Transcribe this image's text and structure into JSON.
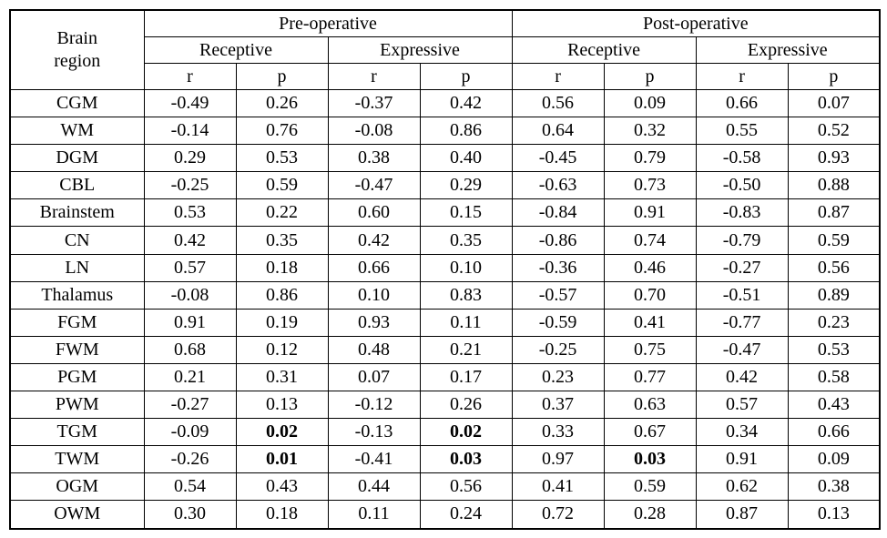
{
  "table": {
    "corner_header": "Brain region",
    "groups": [
      {
        "label": "Pre-operative",
        "subgroups": [
          {
            "label": "Receptive"
          },
          {
            "label": "Expressive"
          }
        ]
      },
      {
        "label": "Post-operative",
        "subgroups": [
          {
            "label": "Receptive"
          },
          {
            "label": "Expressive"
          }
        ]
      }
    ],
    "stat_headers": [
      "r",
      "p"
    ],
    "rows": [
      {
        "region": "CGM",
        "values": [
          "-0.49",
          "0.26",
          "-0.37",
          "0.42",
          "0.56",
          "0.09",
          "0.66",
          "0.07"
        ],
        "bold": []
      },
      {
        "region": "WM",
        "values": [
          "-0.14",
          "0.76",
          "-0.08",
          "0.86",
          "0.64",
          "0.32",
          "0.55",
          "0.52"
        ],
        "bold": []
      },
      {
        "region": "DGM",
        "values": [
          "0.29",
          "0.53",
          "0.38",
          "0.40",
          "-0.45",
          "0.79",
          "-0.58",
          "0.93"
        ],
        "bold": []
      },
      {
        "region": "CBL",
        "values": [
          "-0.25",
          "0.59",
          "-0.47",
          "0.29",
          "-0.63",
          "0.73",
          "-0.50",
          "0.88"
        ],
        "bold": []
      },
      {
        "region": "Brainstem",
        "values": [
          "0.53",
          "0.22",
          "0.60",
          "0.15",
          "-0.84",
          "0.91",
          "-0.83",
          "0.87"
        ],
        "bold": []
      },
      {
        "region": "CN",
        "values": [
          "0.42",
          "0.35",
          "0.42",
          "0.35",
          "-0.86",
          "0.74",
          "-0.79",
          "0.59"
        ],
        "bold": []
      },
      {
        "region": "LN",
        "values": [
          "0.57",
          "0.18",
          "0.66",
          "0.10",
          "-0.36",
          "0.46",
          "-0.27",
          "0.56"
        ],
        "bold": []
      },
      {
        "region": "Thalamus",
        "values": [
          "-0.08",
          "0.86",
          "0.10",
          "0.83",
          "-0.57",
          "0.70",
          "-0.51",
          "0.89"
        ],
        "bold": []
      },
      {
        "region": "FGM",
        "values": [
          "0.91",
          "0.19",
          "0.93",
          "0.11",
          "-0.59",
          "0.41",
          "-0.77",
          "0.23"
        ],
        "bold": []
      },
      {
        "region": "FWM",
        "values": [
          "0.68",
          "0.12",
          "0.48",
          "0.21",
          "-0.25",
          "0.75",
          "-0.47",
          "0.53"
        ],
        "bold": []
      },
      {
        "region": "PGM",
        "values": [
          "0.21",
          "0.31",
          "0.07",
          "0.17",
          "0.23",
          "0.77",
          "0.42",
          "0.58"
        ],
        "bold": []
      },
      {
        "region": "PWM",
        "values": [
          "-0.27",
          "0.13",
          "-0.12",
          "0.26",
          "0.37",
          "0.63",
          "0.57",
          "0.43"
        ],
        "bold": []
      },
      {
        "region": "TGM",
        "values": [
          "-0.09",
          "0.02",
          "-0.13",
          "0.02",
          "0.33",
          "0.67",
          "0.34",
          "0.66"
        ],
        "bold": [
          1,
          3
        ]
      },
      {
        "region": "TWM",
        "values": [
          "-0.26",
          "0.01",
          "-0.41",
          "0.03",
          "0.97",
          "0.03",
          "0.91",
          "0.09"
        ],
        "bold": [
          1,
          3,
          5
        ]
      },
      {
        "region": "OGM",
        "values": [
          "0.54",
          "0.43",
          "0.44",
          "0.56",
          "0.41",
          "0.59",
          "0.62",
          "0.38"
        ],
        "bold": []
      },
      {
        "region": "OWM",
        "values": [
          "0.30",
          "0.18",
          "0.11",
          "0.24",
          "0.72",
          "0.28",
          "0.87",
          "0.13"
        ],
        "bold": []
      }
    ]
  }
}
